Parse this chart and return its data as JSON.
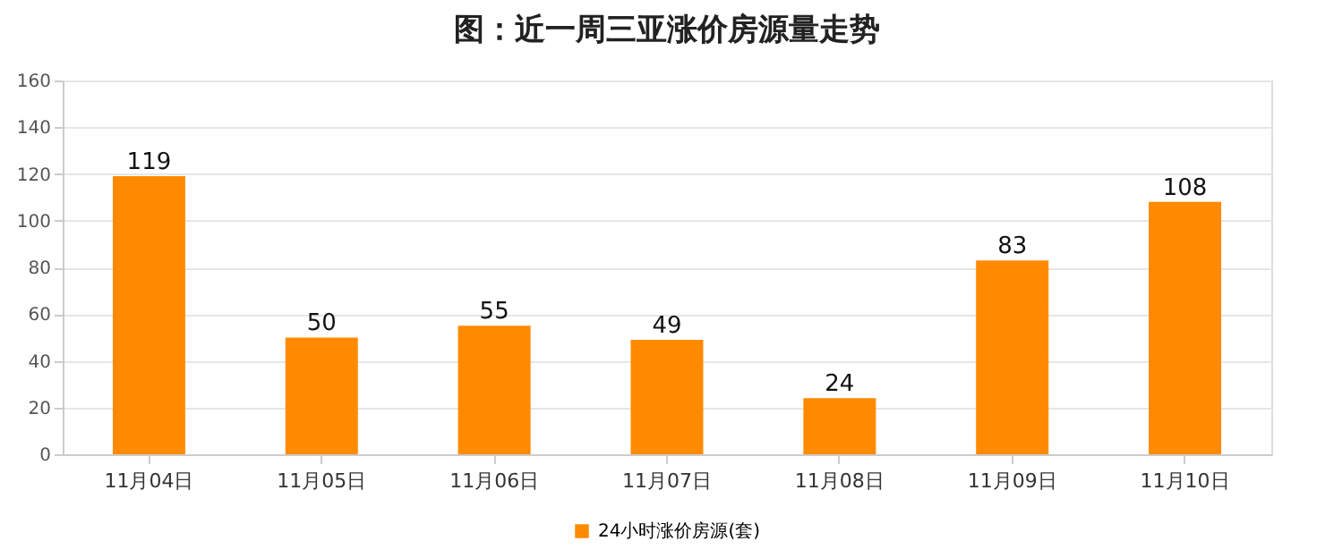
{
  "chart_data": {
    "type": "bar",
    "title": "图：近一周三亚涨价房源量走势",
    "categories": [
      "11月04日",
      "11月05日",
      "11月06日",
      "11月07日",
      "11月08日",
      "11月09日",
      "11月10日"
    ],
    "series": [
      {
        "name": "24小时涨价房源(套)",
        "color": "#ff8a00",
        "values": [
          119,
          50,
          55,
          49,
          24,
          83,
          108
        ]
      }
    ],
    "ylim": [
      0,
      160
    ],
    "yticks": [
      0,
      20,
      40,
      60,
      80,
      100,
      120,
      140,
      160
    ],
    "grid": "y",
    "legend": "bottom",
    "data_labels": true
  }
}
